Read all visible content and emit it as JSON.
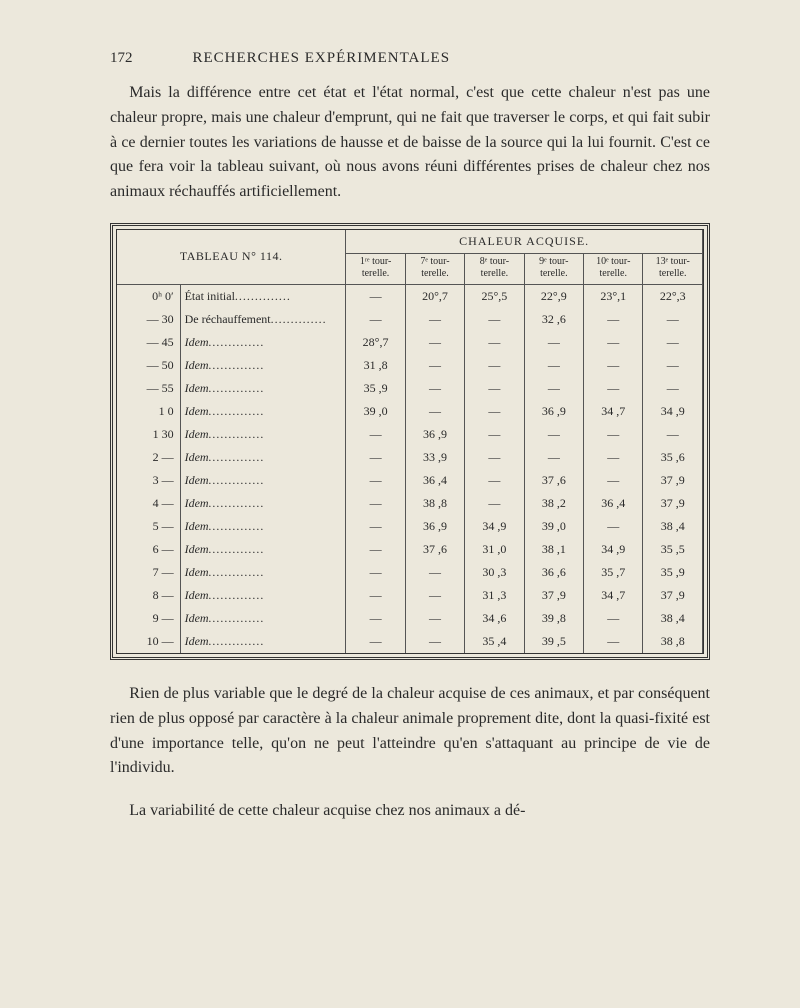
{
  "page_number": "172",
  "running_title": "RECHERCHES EXPÉRIMENTALES",
  "paragraph1": "Mais la différence entre cet état et l'état normal, c'est que cette chaleur n'est pas une chaleur propre, mais une chaleur d'emprunt, qui ne fait que traverser le corps, et qui fait subir à ce dernier toutes les variations de hausse et de baisse de la source qui la lui fournit. C'est ce que fera voir la tableau suivant, où nous avons réuni différentes prises de chaleur chez nos animaux réchauffés artificiellement.",
  "table": {
    "title_left": "TABLEAU N° 114.",
    "spanner": "CHALEUR ACQUISE.",
    "col_heads": [
      "1ʳᵉ tour-terelle.",
      "7ᵉ tour-terelle.",
      "8ᵉ tour-terelle.",
      "9ᵉ tour-terelle.",
      "10ᵉ tour-terelle.",
      "13ᵉ tour-terelle."
    ],
    "rows": [
      {
        "t": "0ʰ  0′",
        "d": "État initial",
        "ital": false,
        "v": [
          "—",
          "20°,7",
          "25°,5",
          "22°,9",
          "23°,1",
          "22°,3"
        ]
      },
      {
        "t": "— 30",
        "d": "De réchauffement",
        "ital": false,
        "v": [
          "—",
          "—",
          "—",
          "32 ,6",
          "—",
          "—"
        ]
      },
      {
        "t": "— 45",
        "d": "Idem",
        "ital": true,
        "v": [
          "28°,7",
          "—",
          "—",
          "—",
          "—",
          "—"
        ]
      },
      {
        "t": "— 50",
        "d": "Idem",
        "ital": true,
        "v": [
          "31 ,8",
          "—",
          "—",
          "—",
          "—",
          "—"
        ]
      },
      {
        "t": "— 55",
        "d": "Idem",
        "ital": true,
        "v": [
          "35 ,9",
          "—",
          "—",
          "—",
          "—",
          "—"
        ]
      },
      {
        "t": "1   0",
        "d": "Idem",
        "ital": true,
        "v": [
          "39 ,0",
          "—",
          "—",
          "36 ,9",
          "34 ,7",
          "34 ,9"
        ]
      },
      {
        "t": "1  30",
        "d": "Idem",
        "ital": true,
        "v": [
          "—",
          "36 ,9",
          "—",
          "—",
          "—",
          "—"
        ]
      },
      {
        "t": "2  —",
        "d": "Idem",
        "ital": true,
        "v": [
          "—",
          "33 ,9",
          "—",
          "—",
          "—",
          "35 ,6"
        ]
      },
      {
        "t": "3  —",
        "d": "Idem",
        "ital": true,
        "v": [
          "—",
          "36 ,4",
          "—",
          "37 ,6",
          "—",
          "37 ,9"
        ]
      },
      {
        "t": "4  —",
        "d": "Idem",
        "ital": true,
        "v": [
          "—",
          "38 ,8",
          "—",
          "38 ,2",
          "36 ,4",
          "37 ,9"
        ]
      },
      {
        "t": "5  —",
        "d": "Idem",
        "ital": true,
        "v": [
          "—",
          "36 ,9",
          "34 ,9",
          "39 ,0",
          "—",
          "38 ,4"
        ]
      },
      {
        "t": "6  —",
        "d": "Idem",
        "ital": true,
        "v": [
          "—",
          "37 ,6",
          "31 ,0",
          "38 ,1",
          "34 ,9",
          "35 ,5"
        ]
      },
      {
        "t": "7  —",
        "d": "Idem",
        "ital": true,
        "v": [
          "—",
          "—",
          "30 ,3",
          "36 ,6",
          "35 ,7",
          "35 ,9"
        ]
      },
      {
        "t": "8  —",
        "d": "Idem",
        "ital": true,
        "v": [
          "—",
          "—",
          "31 ,3",
          "37 ,9",
          "34 ,7",
          "37 ,9"
        ]
      },
      {
        "t": "9  —",
        "d": "Idem",
        "ital": true,
        "v": [
          "—",
          "—",
          "34 ,6",
          "39 ,8",
          "—",
          "38 ,4"
        ]
      },
      {
        "t": "10  —",
        "d": "Idem",
        "ital": true,
        "v": [
          "—",
          "—",
          "35 ,4",
          "39 ,5",
          "—",
          "38 ,8"
        ]
      }
    ]
  },
  "paragraph2": "Rien de plus variable que le degré de la chaleur acquise de ces animaux, et par conséquent rien de plus opposé par caractère à la chaleur animale proprement dite, dont la quasi-fixité est d'une importance telle, qu'on ne peut l'atteindre qu'en s'attaquant au principe de vie de l'individu.",
  "paragraph3": "La variabilité de cette chaleur acquise chez nos animaux a dé-"
}
